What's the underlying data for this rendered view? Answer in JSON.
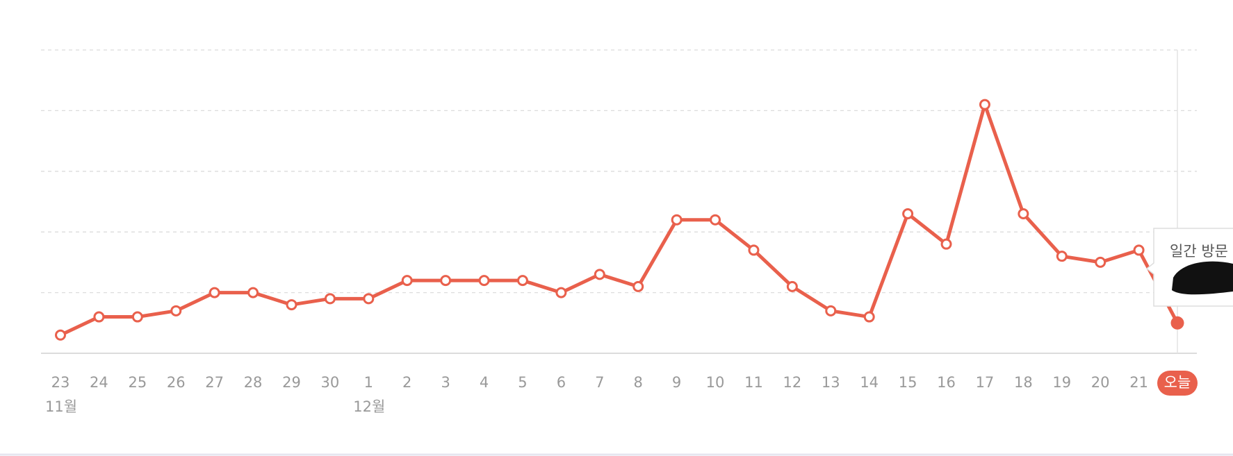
{
  "chart_data": {
    "type": "line",
    "categories": [
      "23",
      "24",
      "25",
      "26",
      "27",
      "28",
      "29",
      "30",
      "1",
      "2",
      "3",
      "4",
      "5",
      "6",
      "7",
      "8",
      "9",
      "10",
      "11",
      "12",
      "13",
      "14",
      "15",
      "16",
      "17",
      "18",
      "19",
      "20",
      "21",
      "오늘"
    ],
    "month_labels": [
      "11월",
      null,
      null,
      null,
      null,
      null,
      null,
      null,
      "12월",
      null,
      null,
      null,
      null,
      null,
      null,
      null,
      null,
      null,
      null,
      null,
      null,
      null,
      null,
      null,
      null,
      null,
      null,
      null,
      null,
      null
    ],
    "series": [
      {
        "name": "일간 방문",
        "color": "#e9604c",
        "values": [
          0.3,
          0.6,
          0.6,
          0.7,
          1.0,
          1.0,
          0.8,
          0.9,
          0.9,
          1.2,
          1.2,
          1.2,
          1.2,
          1.0,
          1.3,
          1.1,
          2.2,
          2.2,
          1.7,
          1.1,
          0.7,
          0.6,
          2.3,
          1.8,
          4.1,
          2.3,
          1.6,
          1.5,
          1.7,
          0.5
        ]
      }
    ],
    "ylim": [
      0,
      5
    ]
  }
}
